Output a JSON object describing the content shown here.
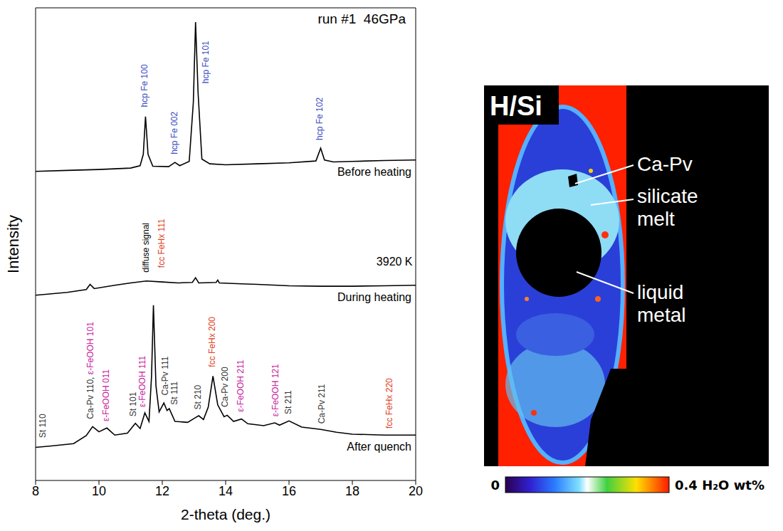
{
  "chart_data": {
    "type": "line",
    "title": "run #1  46GPa",
    "x_label": "2-theta (deg.)",
    "y_label": "Intensity",
    "xlim": [
      8,
      20
    ],
    "xticks": [
      8,
      10,
      12,
      14,
      16,
      18,
      20
    ],
    "ylim": [
      0,
      100
    ],
    "tick_labels": "x",
    "series": [
      {
        "name": "Before heating",
        "color": "#000000",
        "x": [
          8,
          9,
          10,
          11,
          11.3,
          11.4,
          11.47,
          11.55,
          11.7,
          12.2,
          12.4,
          12.55,
          12.85,
          12.98,
          13.05,
          13.13,
          13.25,
          13.5,
          14,
          15,
          16,
          16.85,
          17.0,
          17.12,
          17.4,
          18,
          19,
          20
        ],
        "values": [
          65.4,
          65.6,
          65.8,
          66.1,
          66.6,
          69,
          77,
          69,
          66.5,
          66.4,
          67.3,
          66.6,
          67.5,
          80,
          97,
          82,
          68,
          67,
          66.8,
          67,
          67.2,
          67.6,
          70.3,
          67.8,
          67.4,
          67.5,
          67.7,
          67.8
        ]
      },
      {
        "name": "During heating",
        "color": "#000000",
        "x": [
          8,
          9,
          9.6,
          9.72,
          9.85,
          10.5,
          11,
          11.5,
          12,
          12.5,
          12.95,
          13.05,
          13.15,
          13.7,
          13.75,
          13.8,
          14.5,
          15,
          16,
          17,
          18,
          19,
          20
        ],
        "values": [
          39.2,
          39.8,
          40.4,
          41.5,
          40.6,
          41.3,
          41.8,
          42.2,
          42,
          41.8,
          41.9,
          42.9,
          41.8,
          41.9,
          42.4,
          41.8,
          41.6,
          41.5,
          41.2,
          41.1,
          41.1,
          41.2,
          41.3
        ]
      },
      {
        "name": "After quench",
        "color": "#000000",
        "x": [
          8,
          8.5,
          9.2,
          9.6,
          9.8,
          10.0,
          10.25,
          10.5,
          10.9,
          11.15,
          11.3,
          11.45,
          11.58,
          11.66,
          11.72,
          11.8,
          11.9,
          12.05,
          12.15,
          12.22,
          12.4,
          12.8,
          13.05,
          13.15,
          13.3,
          13.45,
          13.6,
          13.75,
          13.95,
          14.05,
          14.25,
          14.5,
          14.7,
          15.2,
          15.55,
          15.7,
          16.0,
          16.4,
          17,
          17.5,
          18,
          19,
          20
        ],
        "values": [
          7.0,
          7.3,
          7.8,
          9.5,
          11.4,
          10.3,
          11.1,
          9.6,
          10,
          12.1,
          11,
          14.3,
          12.5,
          22,
          37.1,
          20,
          14.5,
          16.4,
          14.8,
          15.2,
          12.5,
          12.3,
          13.3,
          13.7,
          12.9,
          15.5,
          22.1,
          16,
          13.5,
          13.8,
          12.5,
          13,
          12,
          11.6,
          12.2,
          11.7,
          12.6,
          11.3,
          10.8,
          10.2,
          9.8,
          9.6,
          9.6
        ]
      }
    ],
    "peak_labels": [
      {
        "texts": [
          "hcp Fe 100"
        ],
        "colors": [
          "#3a4cc2"
        ],
        "x": 11.47,
        "y": 79
      },
      {
        "texts": [
          "hcp Fe 002"
        ],
        "colors": [
          "#3a4cc2"
        ],
        "x": 12.4,
        "y": 69
      },
      {
        "texts": [
          "hcp Fe 101"
        ],
        "colors": [
          "#3a4cc2"
        ],
        "x": 13.4,
        "y": 84
      },
      {
        "texts": [
          "hcp Fe 102"
        ],
        "colors": [
          "#3a4cc2"
        ],
        "x": 17.0,
        "y": 72
      },
      {
        "texts": [
          "diffuse signal"
        ],
        "colors": [
          "#000000"
        ],
        "x": 11.5,
        "y": 44
      },
      {
        "texts": [
          "St 110"
        ],
        "colors": [
          "#333333"
        ],
        "x": 8.25,
        "y": 9
      },
      {
        "texts": [
          "Ca-Pv 110, ",
          "ε-FeOOH 101"
        ],
        "colors": [
          "#333333",
          "#c8229e"
        ],
        "x": 9.75,
        "y": 13
      },
      {
        "texts": [
          "ε-FeOOH 011"
        ],
        "colors": [
          "#c8229e"
        ],
        "x": 10.25,
        "y": 12.5
      },
      {
        "texts": [
          "St 101"
        ],
        "colors": [
          "#333333"
        ],
        "x": 11.1,
        "y": 13.5
      },
      {
        "texts": [
          "ε-FeOOH 111"
        ],
        "colors": [
          "#c8229e"
        ],
        "x": 11.4,
        "y": 15.5
      },
      {
        "texts": [
          "fcc FeHx 111"
        ],
        "colors": [
          "#e0401c"
        ],
        "x": 12.0,
        "y": 45
      },
      {
        "texts": [
          "Ca-Pv 111"
        ],
        "colors": [
          "#333333"
        ],
        "x": 12.12,
        "y": 18
      },
      {
        "texts": [
          "St 111"
        ],
        "colors": [
          "#333333"
        ],
        "x": 12.4,
        "y": 16
      },
      {
        "texts": [
          "St 210"
        ],
        "colors": [
          "#333333"
        ],
        "x": 13.15,
        "y": 15
      },
      {
        "texts": [
          "fcc FeHx 200"
        ],
        "colors": [
          "#e0401c"
        ],
        "x": 13.6,
        "y": 24
      },
      {
        "texts": [
          "Ca-Pv 200"
        ],
        "colors": [
          "#333333"
        ],
        "x": 14.0,
        "y": 15.5
      },
      {
        "texts": [
          "ε-FeOOH 211"
        ],
        "colors": [
          "#c8229e"
        ],
        "x": 14.5,
        "y": 14.5
      },
      {
        "texts": [
          "ε-FeOOH 121"
        ],
        "colors": [
          "#c8229e"
        ],
        "x": 15.6,
        "y": 13.5
      },
      {
        "texts": [
          "St 211"
        ],
        "colors": [
          "#333333"
        ],
        "x": 16.0,
        "y": 14
      },
      {
        "texts": [
          "Ca-Pv 211"
        ],
        "colors": [
          "#333333"
        ],
        "x": 17.05,
        "y": 12
      },
      {
        "texts": [
          "fcc FeHx 220"
        ],
        "colors": [
          "#e0401c"
        ],
        "x": 19.2,
        "y": 11
      }
    ],
    "annotations": [
      {
        "text": "3920 K",
        "x": 19.9,
        "y": 45.5
      }
    ]
  },
  "map_panel": {
    "title": "H/Si",
    "labels": [
      "Ca-Pv",
      "silicate melt",
      "liquid metal"
    ],
    "colorbar": {
      "range": [
        0,
        0.4
      ],
      "ticks": [
        0,
        {
          "value": 0.4,
          "label": "0.4 H₂O wt%"
        }
      ]
    }
  }
}
